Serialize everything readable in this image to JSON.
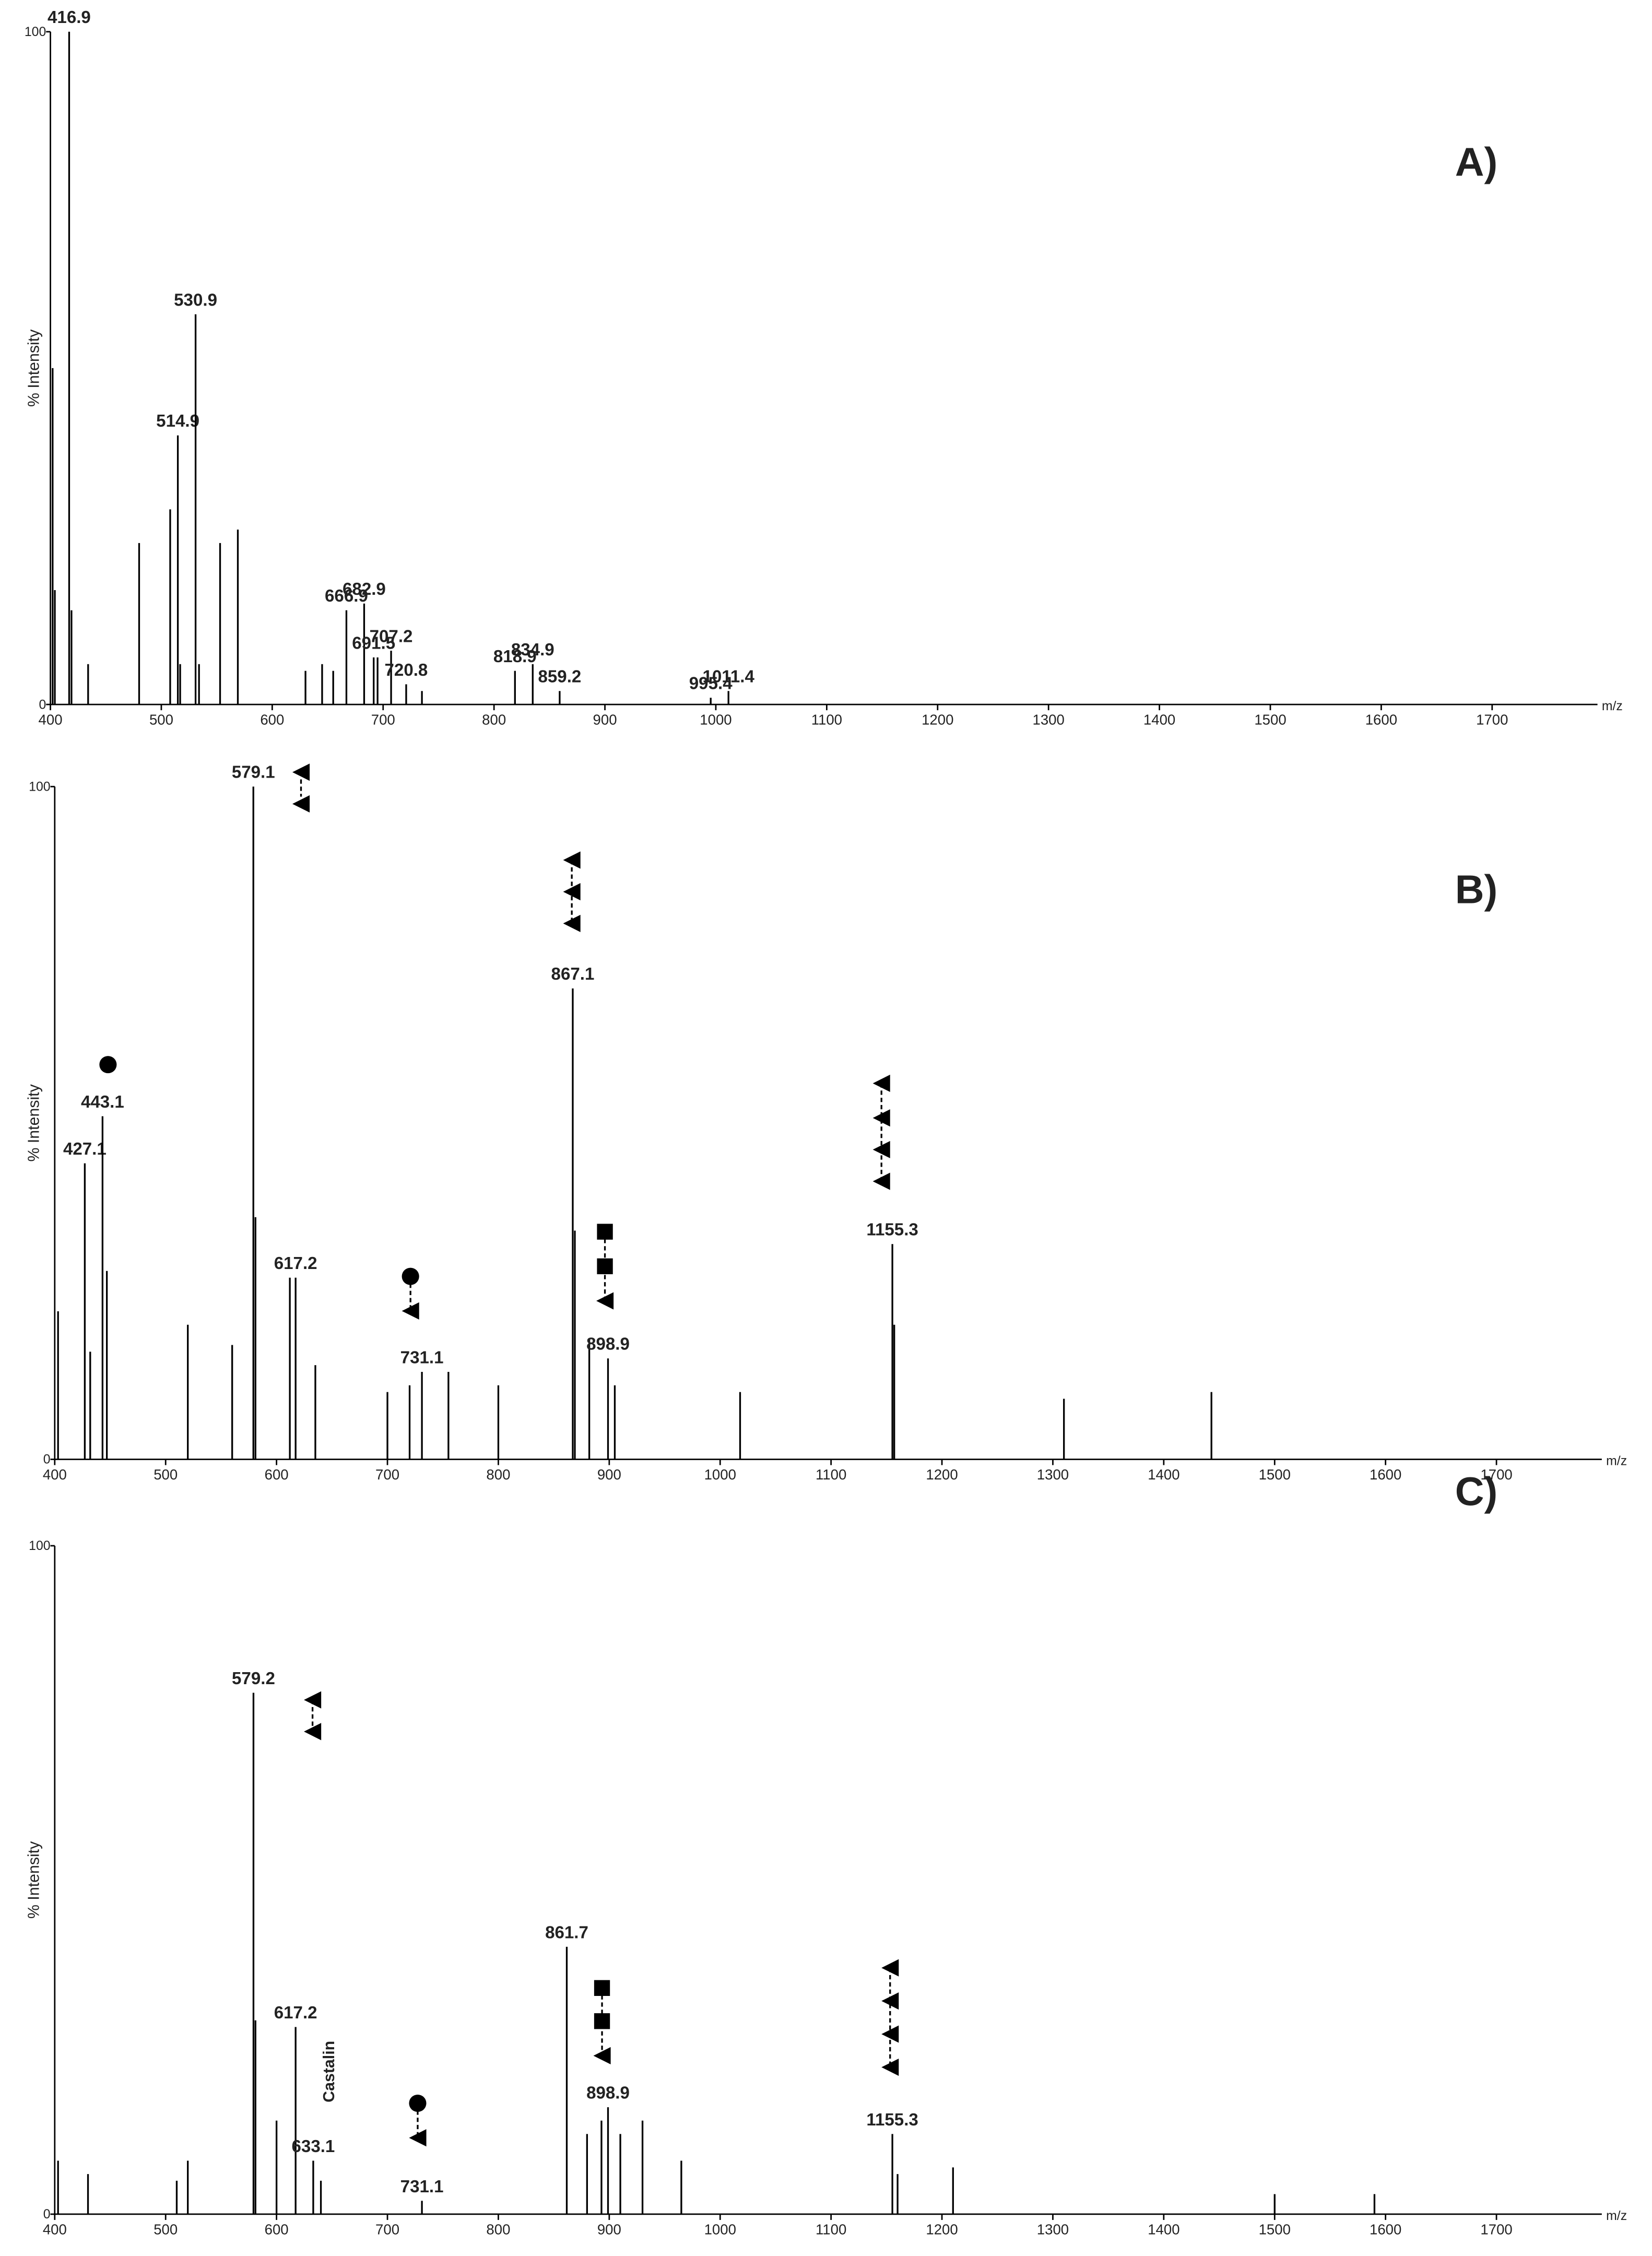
{
  "chart_data": [
    {
      "type": "bar",
      "title": "A)",
      "ylabel": "% Intensity",
      "xlabel": "m/z",
      "xlim": [
        400,
        1795
      ],
      "ylim": [
        0,
        100
      ],
      "xticks": [
        400,
        500,
        600,
        700,
        800,
        900,
        1000,
        1100,
        1200,
        1300,
        1400,
        1500,
        1600,
        1700
      ],
      "yticks": [
        0,
        100
      ],
      "color": "#000000",
      "x": [
        402,
        404,
        416.9,
        419,
        434,
        480,
        508,
        514.9,
        517,
        530.9,
        534,
        553,
        569,
        630,
        645,
        655,
        666.9,
        682.9,
        691.5,
        695,
        707.2,
        720.8,
        735,
        818.9,
        834.9,
        859.2,
        995.4,
        1011.4
      ],
      "values": [
        50,
        17,
        100,
        14,
        6,
        24,
        29,
        40,
        6,
        58,
        6,
        24,
        26,
        5,
        6,
        5,
        14,
        15,
        7,
        7,
        8,
        3,
        2,
        5,
        6,
        2,
        1,
        2
      ],
      "x_labels": [
        null,
        null,
        416.9,
        null,
        null,
        null,
        null,
        514.9,
        null,
        530.9,
        null,
        null,
        null,
        null,
        null,
        null,
        666.9,
        682.9,
        691.5,
        null,
        707.2,
        720.8,
        null,
        818.9,
        834.9,
        859.2,
        995.4,
        1011.4
      ]
    },
    {
      "type": "bar",
      "title": "B)",
      "ylabel": "% Intensity",
      "xlabel": "m/z",
      "xlim": [
        400,
        1795
      ],
      "ylim": [
        0,
        100
      ],
      "xticks": [
        400,
        500,
        600,
        700,
        800,
        900,
        1000,
        1100,
        1200,
        1300,
        1400,
        1500,
        1600,
        1700
      ],
      "yticks": [
        0,
        100
      ],
      "color": "#000000",
      "x": [
        403,
        427.1,
        432,
        443.1,
        447,
        520,
        560,
        579.1,
        581,
        612,
        617.2,
        635,
        700,
        720,
        731.1,
        755,
        800,
        867.1,
        869,
        882,
        898.9,
        905,
        1018,
        1155.3,
        1157,
        1310,
        1443
      ],
      "values": [
        22,
        44,
        16,
        51,
        28,
        20,
        17,
        100,
        36,
        27,
        27,
        14,
        10,
        11,
        13,
        13,
        11,
        70,
        34,
        18,
        15,
        11,
        10,
        32,
        20,
        9,
        10
      ],
      "x_labels": [
        null,
        427.1,
        null,
        443.1,
        null,
        null,
        null,
        579.1,
        null,
        null,
        617.2,
        null,
        null,
        null,
        731.1,
        null,
        null,
        867.1,
        null,
        null,
        898.9,
        null,
        null,
        1155.3,
        null,
        null,
        null
      ]
    },
    {
      "type": "bar",
      "title": "C)",
      "ylabel": "% Intensity",
      "xlabel": "m/z",
      "annotation": "Castalin",
      "xlim": [
        400,
        1795
      ],
      "ylim": [
        0,
        100
      ],
      "xticks": [
        400,
        500,
        600,
        700,
        800,
        900,
        1000,
        1100,
        1200,
        1300,
        1400,
        1500,
        1600,
        1700
      ],
      "yticks": [
        0,
        100
      ],
      "color": "#000000",
      "x": [
        403,
        430,
        510,
        520,
        579.2,
        581,
        600,
        617.2,
        633.1,
        640,
        731.1,
        861.7,
        880,
        893,
        898.9,
        910,
        930,
        965,
        1155.3,
        1160,
        1210,
        1500,
        1590
      ],
      "values": [
        8,
        6,
        5,
        8,
        78,
        29,
        14,
        28,
        8,
        5,
        2,
        40,
        12,
        14,
        16,
        12,
        14,
        8,
        12,
        6,
        7,
        3,
        3
      ],
      "x_labels": [
        null,
        null,
        null,
        null,
        579.2,
        null,
        null,
        617.2,
        633.1,
        null,
        731.1,
        861.7,
        null,
        null,
        898.9,
        null,
        null,
        null,
        1155.3,
        null,
        null,
        null,
        null
      ]
    }
  ]
}
